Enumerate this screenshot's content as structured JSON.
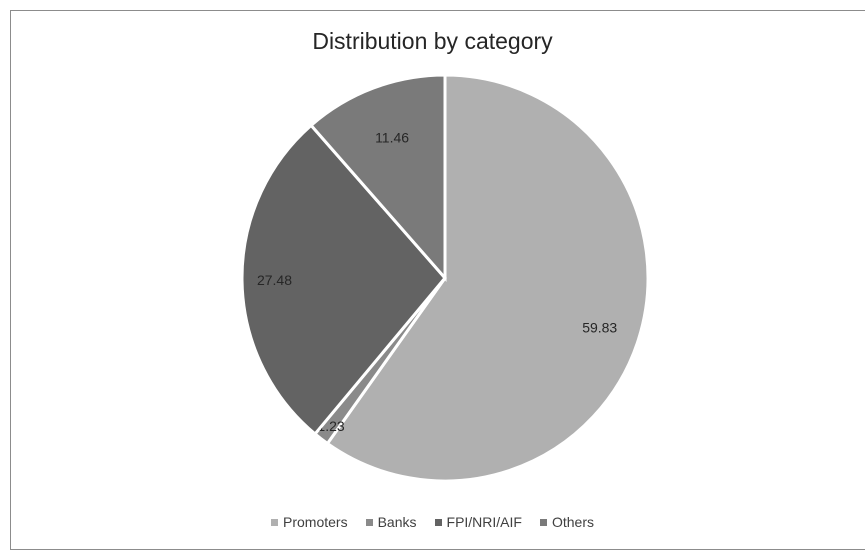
{
  "chart_data": {
    "type": "pie",
    "title": "Distribution by category",
    "categories": [
      "Promoters",
      "Banks",
      "FPI/NRI/AIF",
      "Others"
    ],
    "values": [
      59.83,
      1.23,
      27.48,
      11.46
    ],
    "data_labels": [
      "59.83",
      "1.23",
      "27.48",
      "11.46"
    ],
    "colors": [
      "#b0b0b0",
      "#8a8a8a",
      "#636363",
      "#7a7a7a"
    ],
    "legend_position": "bottom"
  }
}
